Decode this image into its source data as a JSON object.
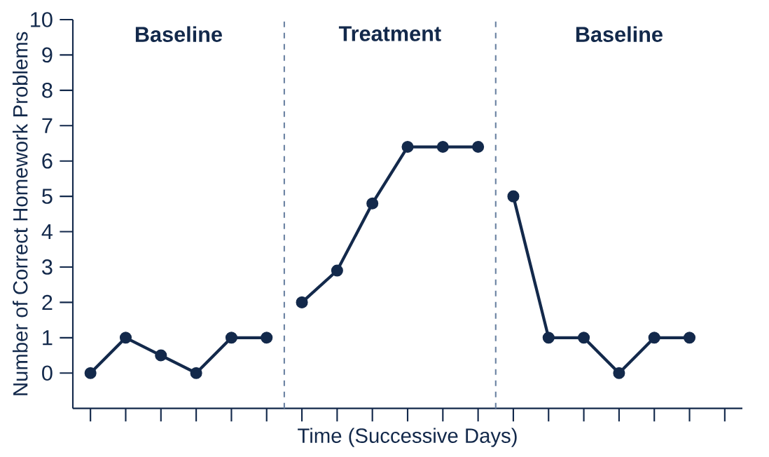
{
  "chart_data": {
    "type": "line",
    "xlabel": "Time (Successive Days)",
    "ylabel": "Number of Correct Homework Problems",
    "annotations": [
      "Baseline",
      "Treatment",
      "Baseline"
    ],
    "categories": [
      null,
      null,
      null,
      null,
      null,
      null,
      null,
      null,
      null,
      null,
      null,
      null,
      null,
      null,
      null,
      null,
      null,
      null,
      null
    ],
    "series": [
      {
        "color": "#13294b",
        "values": [
          0,
          1,
          0.5,
          0,
          1,
          1,
          null,
          null,
          null,
          null,
          null,
          null,
          null,
          null,
          null,
          null,
          null,
          null,
          null
        ]
      },
      {
        "color": "#13294b",
        "values": [
          null,
          null,
          null,
          null,
          null,
          null,
          2,
          2.9,
          4.8,
          6.4,
          6.4,
          6.4,
          null,
          null,
          null,
          null,
          null,
          null,
          null
        ]
      },
      {
        "color": "#13294b",
        "values": [
          null,
          null,
          null,
          null,
          null,
          null,
          null,
          null,
          null,
          null,
          null,
          null,
          5,
          1,
          1,
          0,
          1,
          1,
          null
        ]
      }
    ],
    "ylim": [
      -1,
      10
    ],
    "yticks": [
      0,
      1,
      2,
      3,
      4,
      5,
      6,
      7,
      8,
      9,
      10
    ],
    "tick_labels": "y",
    "marker": "circle",
    "line_style": "solid"
  }
}
